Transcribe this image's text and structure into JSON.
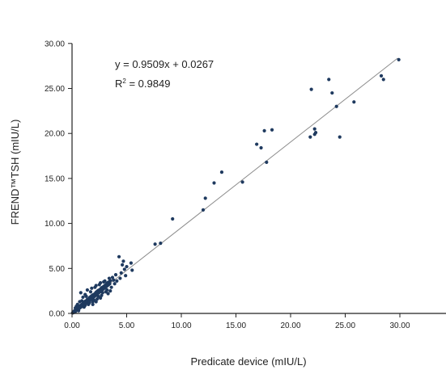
{
  "chart_data": {
    "type": "scatter",
    "xlabel": "Predicate device (mIU/L)",
    "ylabel": "FREND™TSH (mIU/L)",
    "xlim": [
      0,
      35
    ],
    "ylim": [
      0,
      30
    ],
    "x_ticks": [
      "0.00",
      "5.00",
      "10.00",
      "15.00",
      "20.00",
      "25.00",
      "30.00"
    ],
    "y_ticks": [
      "0.00",
      "5.00",
      "10.00",
      "15.00",
      "20.00",
      "25.00",
      "30.00"
    ],
    "annotations": {
      "equation": "y = 0.9509x + 0.0267",
      "r2_prefix": "R",
      "r2_sup": "2",
      "r2_value": " = 0.9849"
    },
    "regression": {
      "slope": 0.9509,
      "intercept": 0.0267,
      "x_range": [
        0,
        29.8
      ]
    },
    "colors": {
      "point": "#1f3a5f",
      "line": "#8c8c8c",
      "axis": "#222222"
    },
    "points": [
      [
        0.05,
        0.05
      ],
      [
        0.1,
        0.15
      ],
      [
        0.15,
        0.1
      ],
      [
        0.2,
        0.25
      ],
      [
        0.25,
        0.3
      ],
      [
        0.3,
        0.2
      ],
      [
        0.35,
        0.45
      ],
      [
        0.4,
        0.35
      ],
      [
        0.45,
        0.5
      ],
      [
        0.5,
        0.6
      ],
      [
        0.55,
        0.45
      ],
      [
        0.6,
        0.7
      ],
      [
        0.65,
        0.55
      ],
      [
        0.7,
        0.8
      ],
      [
        0.75,
        0.65
      ],
      [
        0.8,
        0.9
      ],
      [
        0.85,
        0.75
      ],
      [
        0.9,
        1.0
      ],
      [
        0.95,
        0.85
      ],
      [
        1.0,
        1.1
      ],
      [
        1.05,
        0.95
      ],
      [
        1.1,
        1.2
      ],
      [
        1.15,
        1.05
      ],
      [
        1.2,
        1.35
      ],
      [
        1.25,
        1.15
      ],
      [
        1.3,
        1.4
      ],
      [
        1.35,
        1.25
      ],
      [
        1.4,
        1.55
      ],
      [
        1.45,
        1.35
      ],
      [
        1.5,
        1.6
      ],
      [
        1.55,
        1.45
      ],
      [
        1.6,
        1.75
      ],
      [
        1.65,
        1.5
      ],
      [
        1.7,
        1.85
      ],
      [
        1.75,
        1.6
      ],
      [
        1.8,
        1.95
      ],
      [
        1.85,
        1.7
      ],
      [
        1.9,
        2.05
      ],
      [
        1.95,
        1.8
      ],
      [
        2.0,
        2.1
      ],
      [
        2.05,
        1.9
      ],
      [
        2.1,
        2.2
      ],
      [
        2.15,
        2.0
      ],
      [
        2.2,
        2.35
      ],
      [
        2.25,
        2.1
      ],
      [
        2.3,
        2.45
      ],
      [
        2.35,
        2.2
      ],
      [
        2.4,
        2.55
      ],
      [
        2.45,
        2.3
      ],
      [
        2.5,
        2.6
      ],
      [
        2.55,
        2.4
      ],
      [
        2.6,
        2.7
      ],
      [
        2.65,
        2.5
      ],
      [
        2.7,
        2.85
      ],
      [
        2.75,
        2.6
      ],
      [
        2.8,
        2.9
      ],
      [
        2.85,
        2.7
      ],
      [
        2.9,
        3.0
      ],
      [
        2.95,
        2.8
      ],
      [
        3.0,
        3.1
      ],
      [
        3.05,
        2.9
      ],
      [
        3.1,
        3.2
      ],
      [
        3.15,
        3.0
      ],
      [
        3.2,
        3.35
      ],
      [
        3.25,
        3.1
      ],
      [
        3.3,
        3.45
      ],
      [
        3.35,
        3.2
      ],
      [
        3.4,
        3.5
      ],
      [
        3.45,
        3.3
      ],
      [
        3.5,
        3.65
      ],
      [
        0.3,
        0.6
      ],
      [
        0.6,
        0.3
      ],
      [
        0.9,
        1.4
      ],
      [
        1.1,
        0.7
      ],
      [
        1.3,
        1.9
      ],
      [
        1.5,
        1.0
      ],
      [
        1.7,
        2.4
      ],
      [
        1.9,
        1.3
      ],
      [
        2.1,
        2.9
      ],
      [
        2.3,
        1.6
      ],
      [
        2.5,
        3.2
      ],
      [
        2.7,
        2.0
      ],
      [
        2.9,
        3.5
      ],
      [
        3.1,
        2.4
      ],
      [
        0.8,
        2.3
      ],
      [
        1.0,
        1.8
      ],
      [
        1.2,
        2.1
      ],
      [
        0.7,
        1.3
      ],
      [
        1.4,
        2.6
      ],
      [
        1.6,
        1.2
      ],
      [
        1.8,
        2.8
      ],
      [
        2.0,
        1.5
      ],
      [
        2.2,
        3.1
      ],
      [
        2.4,
        1.9
      ],
      [
        2.6,
        3.4
      ],
      [
        2.8,
        2.3
      ],
      [
        3.0,
        3.6
      ],
      [
        3.2,
        2.6
      ],
      [
        3.4,
        3.9
      ],
      [
        3.6,
        2.9
      ],
      [
        3.8,
        3.7
      ],
      [
        3.7,
        4.0
      ],
      [
        3.9,
        3.3
      ],
      [
        4.0,
        4.3
      ],
      [
        3.3,
        2.2
      ],
      [
        3.5,
        2.5
      ],
      [
        1.2,
        0.9
      ],
      [
        0.5,
        1.0
      ],
      [
        0.4,
        0.8
      ],
      [
        1.9,
        1.0
      ],
      [
        2.2,
        1.3
      ],
      [
        2.6,
        1.7
      ],
      [
        4.1,
        3.6
      ],
      [
        4.3,
        6.3
      ],
      [
        4.5,
        4.5
      ],
      [
        4.6,
        5.4
      ],
      [
        4.7,
        5.8
      ],
      [
        4.8,
        4.9
      ],
      [
        5.0,
        5.2
      ],
      [
        4.4,
        3.9
      ],
      [
        4.9,
        4.2
      ],
      [
        5.4,
        5.6
      ],
      [
        5.5,
        4.8
      ],
      [
        9.2,
        10.5
      ],
      [
        7.6,
        7.7
      ],
      [
        8.1,
        7.8
      ],
      [
        12.0,
        11.5
      ],
      [
        12.2,
        12.8
      ],
      [
        13.0,
        14.5
      ],
      [
        13.7,
        15.7
      ],
      [
        15.6,
        14.6
      ],
      [
        16.9,
        18.8
      ],
      [
        17.3,
        18.4
      ],
      [
        17.6,
        20.3
      ],
      [
        17.8,
        16.8
      ],
      [
        18.3,
        20.4
      ],
      [
        21.9,
        24.9
      ],
      [
        21.8,
        19.6
      ],
      [
        22.2,
        19.9
      ],
      [
        22.3,
        20.1
      ],
      [
        22.2,
        20.5
      ],
      [
        23.5,
        26.0
      ],
      [
        23.8,
        24.5
      ],
      [
        24.2,
        23.0
      ],
      [
        24.5,
        19.6
      ],
      [
        25.8,
        23.5
      ],
      [
        28.3,
        26.4
      ],
      [
        28.5,
        26.0
      ],
      [
        29.9,
        28.2
      ]
    ]
  }
}
